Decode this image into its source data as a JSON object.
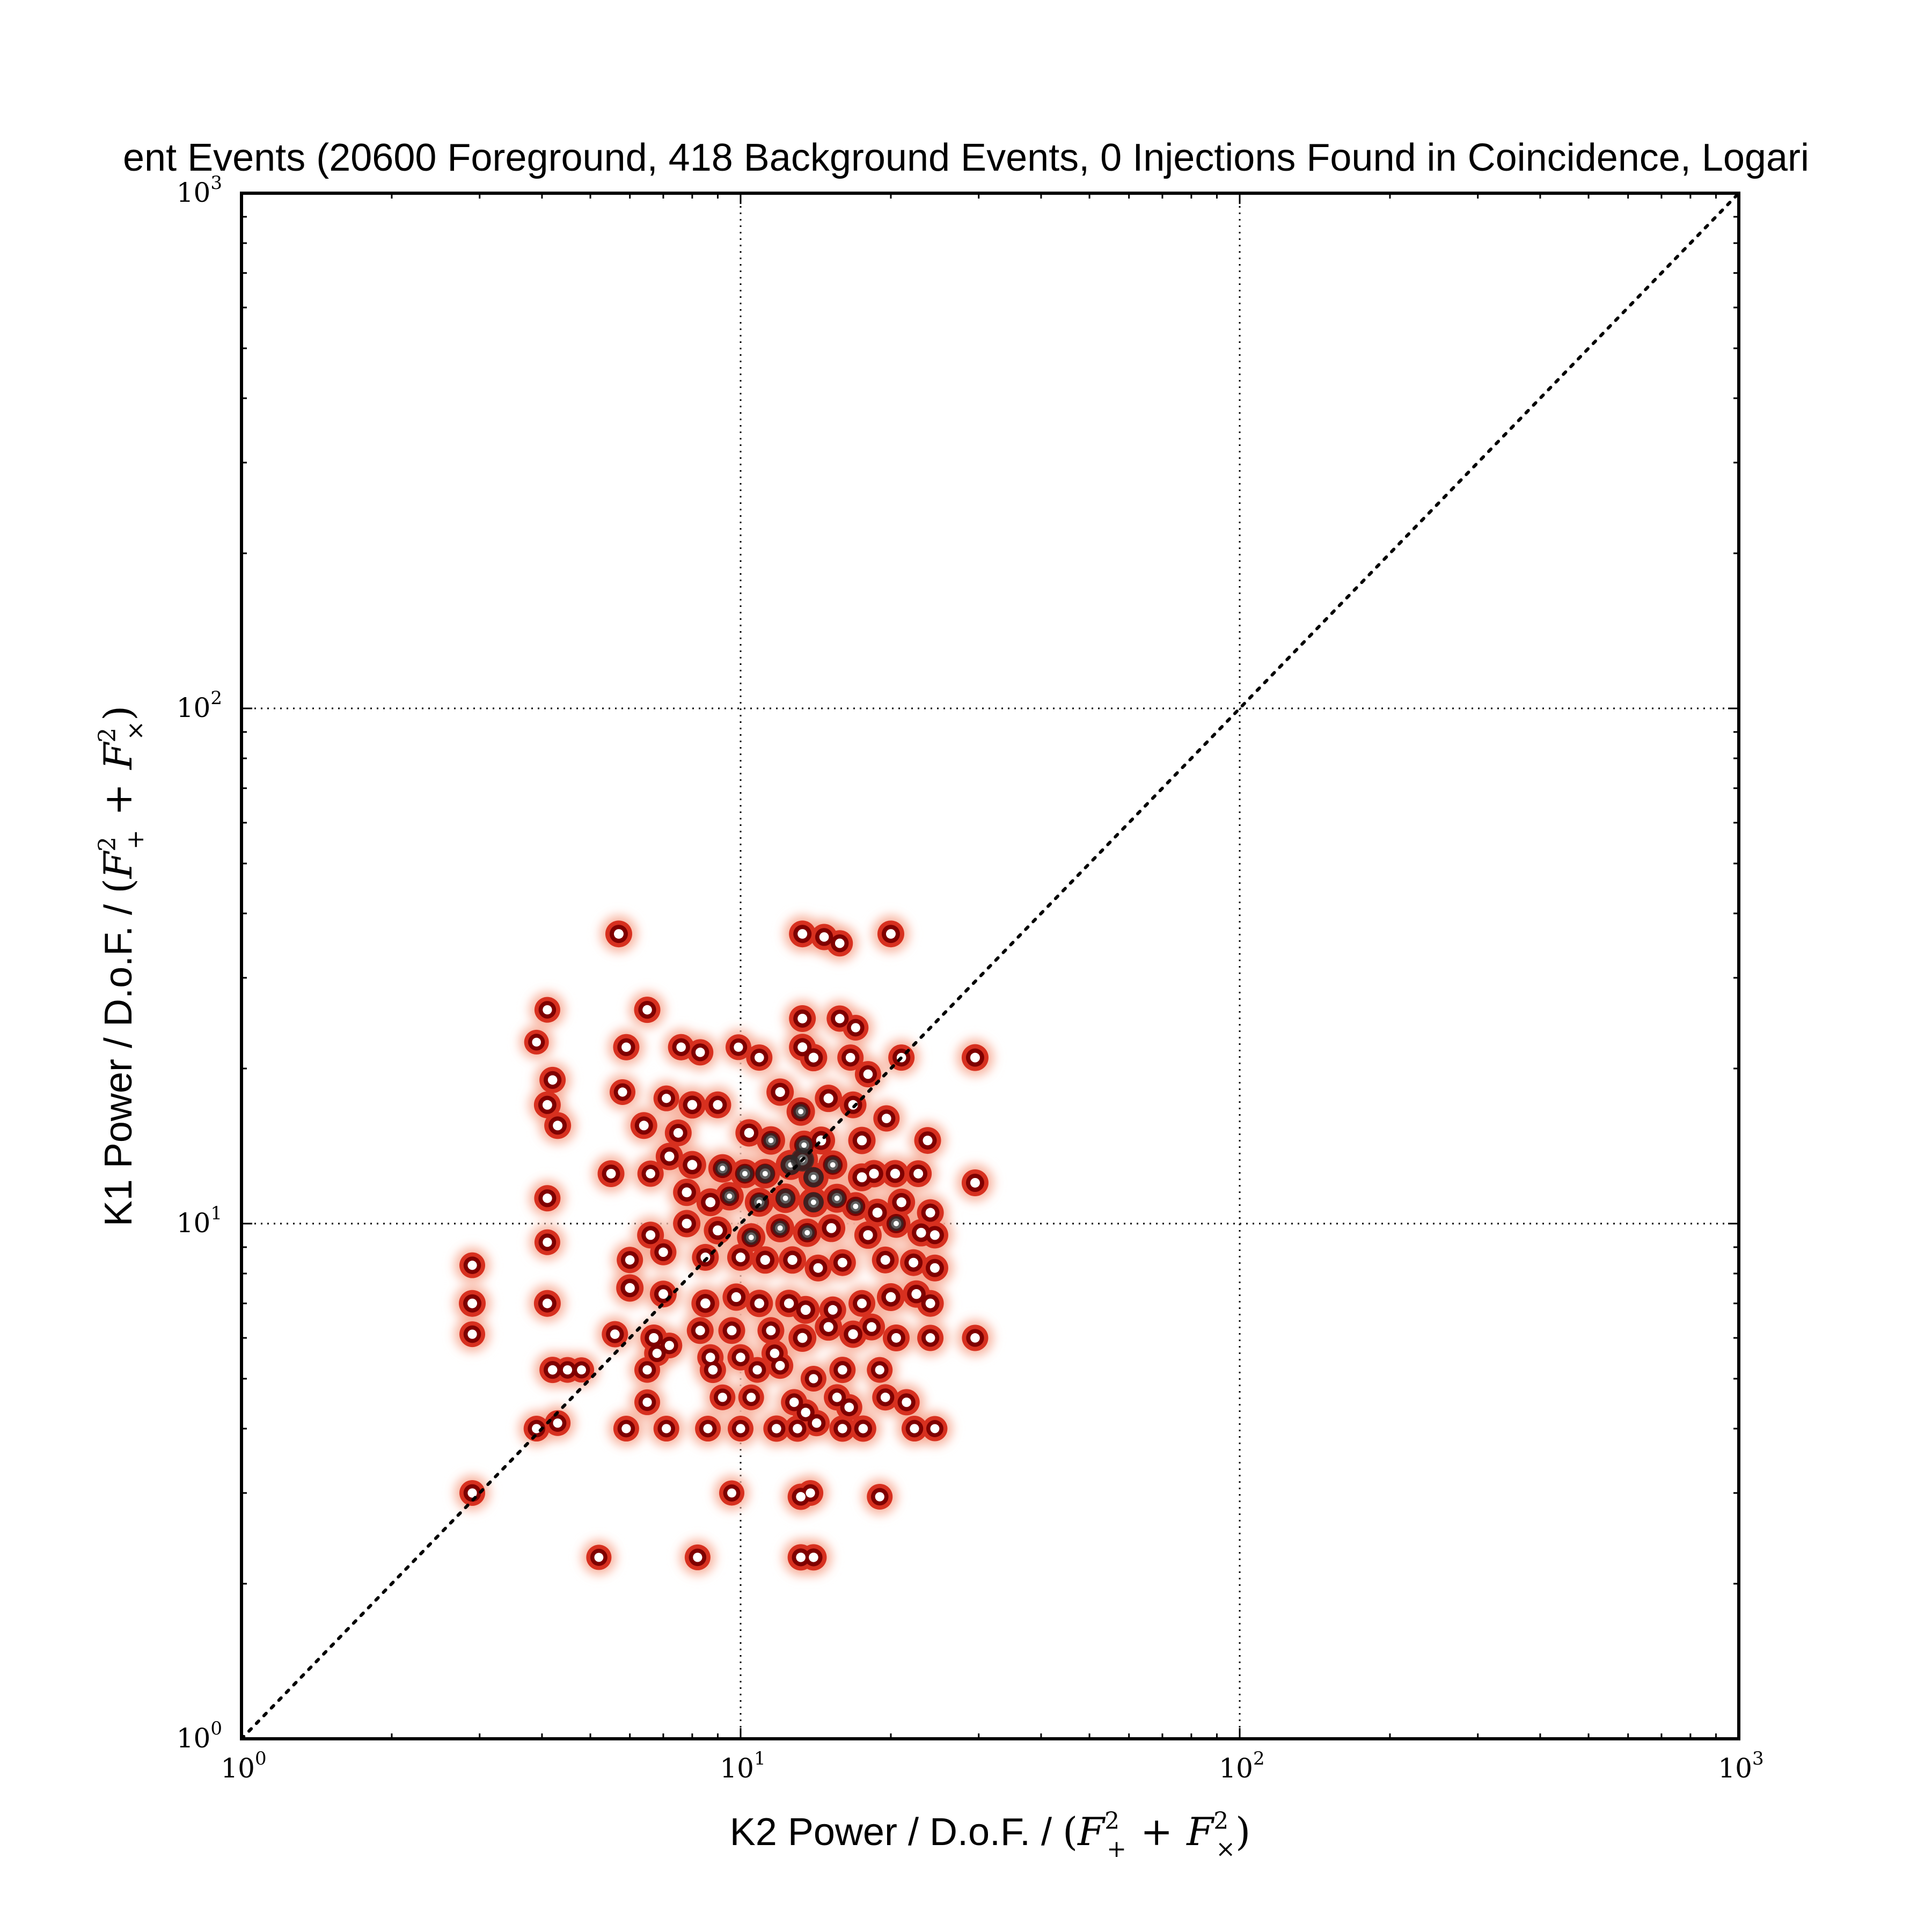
{
  "chart_data": {
    "type": "heatmap",
    "title": "ent Events (20600 Foreground, 418 Background Events, 0 Injections Found in Coincidence, Logari",
    "xlabel": "K2 Power / D.o.F. / ",
    "ylabel": "K1 Power / D.o.F. / ",
    "label_formula": {
      "open": "(",
      "f": "F",
      "sup": "2",
      "plus_sub": "+",
      "plus": "+",
      "times_sub": "×",
      "close": ")"
    },
    "x_scale": "log",
    "y_scale": "log",
    "xlim": [
      1,
      1000
    ],
    "ylim": [
      1,
      1000
    ],
    "grid": true,
    "diagonal_reference_line": true,
    "tick_base": "10",
    "x_ticks": [
      {
        "value": 1,
        "exp": "0"
      },
      {
        "value": 10,
        "exp": "1"
      },
      {
        "value": 100,
        "exp": "2"
      },
      {
        "value": 1000,
        "exp": "3"
      }
    ],
    "y_ticks": [
      {
        "value": 1,
        "exp": "0"
      },
      {
        "value": 10,
        "exp": "1"
      },
      {
        "value": 100,
        "exp": "2"
      },
      {
        "value": 1000,
        "exp": "3"
      }
    ],
    "colors": {
      "low": "#fde0d6",
      "mid": "#d7301f",
      "high": "#7f0000",
      "peak": "#2b2b2b"
    },
    "points": [
      {
        "x": 5.7,
        "y": 36.5,
        "w": 1.0
      },
      {
        "x": 13.3,
        "y": 36.5,
        "w": 1.0
      },
      {
        "x": 14.7,
        "y": 36.0,
        "w": 0.9
      },
      {
        "x": 15.8,
        "y": 35.0,
        "w": 0.9
      },
      {
        "x": 20.0,
        "y": 36.5,
        "w": 1.0
      },
      {
        "x": 4.1,
        "y": 26.0,
        "w": 0.8
      },
      {
        "x": 6.5,
        "y": 26.0,
        "w": 0.9
      },
      {
        "x": 13.3,
        "y": 25.0,
        "w": 1.0
      },
      {
        "x": 15.8,
        "y": 25.0,
        "w": 0.9
      },
      {
        "x": 17.0,
        "y": 24.0,
        "w": 0.8
      },
      {
        "x": 3.9,
        "y": 22.5,
        "w": 0.6
      },
      {
        "x": 5.9,
        "y": 22.0,
        "w": 0.9
      },
      {
        "x": 7.6,
        "y": 22.0,
        "w": 0.9
      },
      {
        "x": 8.3,
        "y": 21.5,
        "w": 0.9
      },
      {
        "x": 9.9,
        "y": 22.0,
        "w": 0.8
      },
      {
        "x": 10.9,
        "y": 21.0,
        "w": 0.9
      },
      {
        "x": 13.3,
        "y": 22.0,
        "w": 1.0
      },
      {
        "x": 14.0,
        "y": 21.0,
        "w": 1.1
      },
      {
        "x": 16.6,
        "y": 21.0,
        "w": 0.9
      },
      {
        "x": 18.0,
        "y": 19.5,
        "w": 0.9
      },
      {
        "x": 21.0,
        "y": 21.0,
        "w": 0.9
      },
      {
        "x": 29.5,
        "y": 21.0,
        "w": 1.0
      },
      {
        "x": 4.2,
        "y": 19.0,
        "w": 0.9
      },
      {
        "x": 4.1,
        "y": 17.0,
        "w": 1.0
      },
      {
        "x": 4.3,
        "y": 15.5,
        "w": 1.0
      },
      {
        "x": 5.8,
        "y": 18.0,
        "w": 0.8
      },
      {
        "x": 7.1,
        "y": 17.5,
        "w": 0.8
      },
      {
        "x": 6.4,
        "y": 15.5,
        "w": 1.0
      },
      {
        "x": 8.0,
        "y": 17.0,
        "w": 1.1
      },
      {
        "x": 9.0,
        "y": 17.0,
        "w": 1.0
      },
      {
        "x": 12.0,
        "y": 18.0,
        "w": 1.1
      },
      {
        "x": 13.2,
        "y": 16.5,
        "w": 1.3
      },
      {
        "x": 15.0,
        "y": 17.5,
        "w": 1.1
      },
      {
        "x": 16.8,
        "y": 17.0,
        "w": 1.0
      },
      {
        "x": 19.6,
        "y": 16.0,
        "w": 0.9
      },
      {
        "x": 7.5,
        "y": 15.0,
        "w": 1.0
      },
      {
        "x": 10.4,
        "y": 15.0,
        "w": 1.1
      },
      {
        "x": 11.5,
        "y": 14.5,
        "w": 1.3
      },
      {
        "x": 13.4,
        "y": 14.2,
        "w": 1.4
      },
      {
        "x": 14.5,
        "y": 14.5,
        "w": 1.2
      },
      {
        "x": 17.5,
        "y": 14.5,
        "w": 1.1
      },
      {
        "x": 23.7,
        "y": 14.5,
        "w": 1.0
      },
      {
        "x": 5.5,
        "y": 12.5,
        "w": 1.0
      },
      {
        "x": 6.6,
        "y": 12.5,
        "w": 0.9
      },
      {
        "x": 7.2,
        "y": 13.5,
        "w": 1.1
      },
      {
        "x": 8.0,
        "y": 13.0,
        "w": 1.2
      },
      {
        "x": 9.2,
        "y": 12.8,
        "w": 1.3
      },
      {
        "x": 10.2,
        "y": 12.5,
        "w": 1.4
      },
      {
        "x": 11.2,
        "y": 12.5,
        "w": 1.5
      },
      {
        "x": 12.6,
        "y": 13.0,
        "w": 1.6
      },
      {
        "x": 13.3,
        "y": 13.3,
        "w": 1.8
      },
      {
        "x": 14.0,
        "y": 12.3,
        "w": 1.6
      },
      {
        "x": 15.3,
        "y": 13.0,
        "w": 1.4
      },
      {
        "x": 17.5,
        "y": 12.3,
        "w": 1.2
      },
      {
        "x": 18.5,
        "y": 12.5,
        "w": 1.1
      },
      {
        "x": 20.4,
        "y": 12.5,
        "w": 1.1
      },
      {
        "x": 22.7,
        "y": 12.5,
        "w": 1.0
      },
      {
        "x": 29.5,
        "y": 12.0,
        "w": 1.0
      },
      {
        "x": 4.1,
        "y": 11.2,
        "w": 0.9
      },
      {
        "x": 7.8,
        "y": 11.5,
        "w": 1.1
      },
      {
        "x": 8.7,
        "y": 11.0,
        "w": 1.2
      },
      {
        "x": 9.5,
        "y": 11.3,
        "w": 1.3
      },
      {
        "x": 10.9,
        "y": 11.0,
        "w": 1.4
      },
      {
        "x": 12.3,
        "y": 11.2,
        "w": 1.5
      },
      {
        "x": 14.0,
        "y": 11.0,
        "w": 1.6
      },
      {
        "x": 15.6,
        "y": 11.2,
        "w": 1.4
      },
      {
        "x": 17.0,
        "y": 10.8,
        "w": 1.3
      },
      {
        "x": 18.8,
        "y": 10.5,
        "w": 1.2
      },
      {
        "x": 21.0,
        "y": 11.0,
        "w": 1.1
      },
      {
        "x": 24.0,
        "y": 10.5,
        "w": 1.0
      },
      {
        "x": 6.6,
        "y": 9.5,
        "w": 1.0
      },
      {
        "x": 7.8,
        "y": 10.0,
        "w": 1.1
      },
      {
        "x": 9.0,
        "y": 9.7,
        "w": 1.2
      },
      {
        "x": 10.5,
        "y": 9.4,
        "w": 1.3
      },
      {
        "x": 12.0,
        "y": 9.8,
        "w": 1.3
      },
      {
        "x": 13.6,
        "y": 9.6,
        "w": 1.3
      },
      {
        "x": 15.2,
        "y": 9.8,
        "w": 1.2
      },
      {
        "x": 18.0,
        "y": 9.5,
        "w": 1.1
      },
      {
        "x": 20.5,
        "y": 10.0,
        "w": 1.3
      },
      {
        "x": 23.0,
        "y": 9.6,
        "w": 1.1
      },
      {
        "x": 24.5,
        "y": 9.5,
        "w": 1.0
      },
      {
        "x": 4.1,
        "y": 9.2,
        "w": 0.8
      },
      {
        "x": 6.0,
        "y": 8.5,
        "w": 0.9
      },
      {
        "x": 7.0,
        "y": 8.8,
        "w": 0.9
      },
      {
        "x": 8.5,
        "y": 8.6,
        "w": 1.0
      },
      {
        "x": 10.0,
        "y": 8.6,
        "w": 1.0
      },
      {
        "x": 11.2,
        "y": 8.5,
        "w": 1.1
      },
      {
        "x": 12.7,
        "y": 8.5,
        "w": 1.1
      },
      {
        "x": 14.3,
        "y": 8.2,
        "w": 1.0
      },
      {
        "x": 16.0,
        "y": 8.4,
        "w": 1.0
      },
      {
        "x": 19.5,
        "y": 8.5,
        "w": 1.0
      },
      {
        "x": 22.2,
        "y": 8.4,
        "w": 1.0
      },
      {
        "x": 24.5,
        "y": 8.2,
        "w": 1.0
      },
      {
        "x": 2.9,
        "y": 8.3,
        "w": 0.8
      },
      {
        "x": 6.0,
        "y": 7.5,
        "w": 1.1
      },
      {
        "x": 7.0,
        "y": 7.3,
        "w": 1.0
      },
      {
        "x": 8.5,
        "y": 7.0,
        "w": 1.2
      },
      {
        "x": 9.8,
        "y": 7.2,
        "w": 1.1
      },
      {
        "x": 10.9,
        "y": 7.0,
        "w": 1.1
      },
      {
        "x": 12.5,
        "y": 7.0,
        "w": 1.1
      },
      {
        "x": 13.5,
        "y": 6.8,
        "w": 1.2
      },
      {
        "x": 15.3,
        "y": 6.8,
        "w": 1.0
      },
      {
        "x": 17.5,
        "y": 7.0,
        "w": 1.0
      },
      {
        "x": 20.0,
        "y": 7.2,
        "w": 1.2
      },
      {
        "x": 22.5,
        "y": 7.3,
        "w": 1.1
      },
      {
        "x": 24.0,
        "y": 7.0,
        "w": 1.0
      },
      {
        "x": 2.9,
        "y": 7.0,
        "w": 1.0
      },
      {
        "x": 4.1,
        "y": 7.0,
        "w": 1.0
      },
      {
        "x": 6.7,
        "y": 6.0,
        "w": 1.0
      },
      {
        "x": 8.3,
        "y": 6.2,
        "w": 1.0
      },
      {
        "x": 9.6,
        "y": 6.2,
        "w": 1.0
      },
      {
        "x": 11.5,
        "y": 6.2,
        "w": 1.0
      },
      {
        "x": 13.3,
        "y": 6.0,
        "w": 1.2
      },
      {
        "x": 15.0,
        "y": 6.3,
        "w": 1.1
      },
      {
        "x": 16.8,
        "y": 6.1,
        "w": 1.1
      },
      {
        "x": 18.3,
        "y": 6.3,
        "w": 1.0
      },
      {
        "x": 20.5,
        "y": 6.0,
        "w": 1.0
      },
      {
        "x": 24.0,
        "y": 6.0,
        "w": 0.9
      },
      {
        "x": 29.5,
        "y": 6.0,
        "w": 0.9
      },
      {
        "x": 2.9,
        "y": 6.1,
        "w": 0.8
      },
      {
        "x": 5.6,
        "y": 6.1,
        "w": 0.9
      },
      {
        "x": 6.8,
        "y": 5.6,
        "w": 0.8
      },
      {
        "x": 7.2,
        "y": 5.8,
        "w": 0.8
      },
      {
        "x": 8.7,
        "y": 5.5,
        "w": 0.9
      },
      {
        "x": 10.0,
        "y": 5.5,
        "w": 0.9
      },
      {
        "x": 11.7,
        "y": 5.6,
        "w": 0.9
      },
      {
        "x": 4.2,
        "y": 5.2,
        "w": 0.9
      },
      {
        "x": 4.5,
        "y": 5.2,
        "w": 0.8
      },
      {
        "x": 4.8,
        "y": 5.2,
        "w": 0.7
      },
      {
        "x": 6.5,
        "y": 5.2,
        "w": 0.8
      },
      {
        "x": 8.8,
        "y": 5.2,
        "w": 0.9
      },
      {
        "x": 10.8,
        "y": 5.2,
        "w": 0.8
      },
      {
        "x": 12.0,
        "y": 5.3,
        "w": 0.9
      },
      {
        "x": 14.0,
        "y": 5.0,
        "w": 0.8
      },
      {
        "x": 16.0,
        "y": 5.2,
        "w": 0.9
      },
      {
        "x": 19.0,
        "y": 5.2,
        "w": 0.8
      },
      {
        "x": 6.5,
        "y": 4.5,
        "w": 0.8
      },
      {
        "x": 9.2,
        "y": 4.6,
        "w": 0.8
      },
      {
        "x": 10.5,
        "y": 4.6,
        "w": 0.8
      },
      {
        "x": 12.8,
        "y": 4.5,
        "w": 0.9
      },
      {
        "x": 13.5,
        "y": 4.3,
        "w": 0.9
      },
      {
        "x": 15.6,
        "y": 4.6,
        "w": 0.9
      },
      {
        "x": 16.5,
        "y": 4.4,
        "w": 0.9
      },
      {
        "x": 19.5,
        "y": 4.6,
        "w": 0.9
      },
      {
        "x": 21.5,
        "y": 4.5,
        "w": 0.9
      },
      {
        "x": 4.3,
        "y": 4.1,
        "w": 0.8
      },
      {
        "x": 3.9,
        "y": 4.0,
        "w": 0.8
      },
      {
        "x": 5.9,
        "y": 4.0,
        "w": 0.8
      },
      {
        "x": 7.1,
        "y": 4.0,
        "w": 0.8
      },
      {
        "x": 8.6,
        "y": 4.0,
        "w": 0.8
      },
      {
        "x": 10.0,
        "y": 4.0,
        "w": 0.8
      },
      {
        "x": 11.8,
        "y": 4.0,
        "w": 0.9
      },
      {
        "x": 13.0,
        "y": 4.0,
        "w": 0.9
      },
      {
        "x": 14.2,
        "y": 4.1,
        "w": 0.9
      },
      {
        "x": 16.0,
        "y": 4.0,
        "w": 0.9
      },
      {
        "x": 17.6,
        "y": 4.0,
        "w": 0.9
      },
      {
        "x": 22.3,
        "y": 4.0,
        "w": 0.8
      },
      {
        "x": 24.5,
        "y": 4.0,
        "w": 0.7
      },
      {
        "x": 2.9,
        "y": 3.0,
        "w": 0.8
      },
      {
        "x": 9.6,
        "y": 3.0,
        "w": 0.7
      },
      {
        "x": 13.2,
        "y": 2.95,
        "w": 0.9
      },
      {
        "x": 13.8,
        "y": 3.0,
        "w": 0.8
      },
      {
        "x": 19.0,
        "y": 2.95,
        "w": 0.8
      },
      {
        "x": 5.2,
        "y": 2.25,
        "w": 0.7
      },
      {
        "x": 8.2,
        "y": 2.25,
        "w": 0.8
      },
      {
        "x": 13.2,
        "y": 2.25,
        "w": 0.9
      },
      {
        "x": 14.0,
        "y": 2.25,
        "w": 0.9
      }
    ]
  }
}
